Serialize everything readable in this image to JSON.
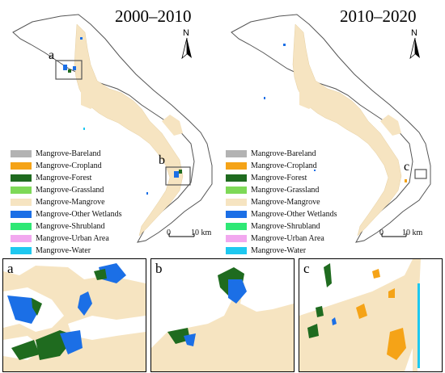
{
  "maps": [
    {
      "title": "2000–2010",
      "scale_zero": "0",
      "scale_km": "10 km",
      "north": "N",
      "markers": [
        "a",
        "b"
      ]
    },
    {
      "title": "2010–2020",
      "scale_zero": "0",
      "scale_km": "10 km",
      "north": "N",
      "markers": [
        "c"
      ]
    }
  ],
  "legend": [
    {
      "label": "Mangrove-Bareland",
      "color": "#b3b3b3"
    },
    {
      "label": "Mangrove-Cropland",
      "color": "#f5a317"
    },
    {
      "label": "Mangrove-Forest",
      "color": "#1f6b1f"
    },
    {
      "label": "Mangrove-Grassland",
      "color": "#7ed957"
    },
    {
      "label": "Mangrove-Mangrove",
      "color": "#f6e4c1"
    },
    {
      "label": "Mangrove-Other Wetlands",
      "color": "#1b6fe6"
    },
    {
      "label": "Mangrove-Shrubland",
      "color": "#2ee875"
    },
    {
      "label": "Mangrove-Urban Area",
      "color": "#f2a8ef"
    },
    {
      "label": "Mangrove-Water",
      "color": "#1ec8f0"
    }
  ],
  "insets": [
    {
      "label": "a"
    },
    {
      "label": "b"
    },
    {
      "label": "c"
    }
  ]
}
